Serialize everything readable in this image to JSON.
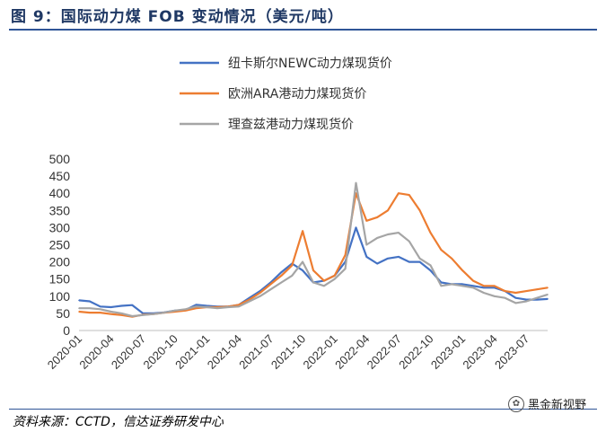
{
  "header": {
    "title": "图 9：国际动力煤 FOB 变动情况（美元/吨）"
  },
  "footer": {
    "source": "资料来源：CCTD，信达证券研发中心",
    "watermark": "黑金新视野"
  },
  "chart_data": {
    "type": "line",
    "title": "图 9：国际动力煤 FOB 变动情况（美元/吨）",
    "xlabel": "",
    "ylabel": "",
    "ylim": [
      0,
      500
    ],
    "yticks": [
      0,
      50,
      100,
      150,
      200,
      250,
      300,
      350,
      400,
      450,
      500
    ],
    "x_range": [
      "2020-01",
      "2023-09"
    ],
    "xticks": [
      "2020-01",
      "2020-04",
      "2020-07",
      "2020-10",
      "2021-01",
      "2021-04",
      "2021-07",
      "2021-10",
      "2022-01",
      "2022-04",
      "2022-07",
      "2022-10",
      "2023-01",
      "2023-04",
      "2023-07"
    ],
    "legend_position": "top",
    "series": [
      {
        "name": "纽卡斯尔NEWC动力煤现货价",
        "color": "#4472c4",
        "points": [
          [
            "2020-01",
            88
          ],
          [
            "2020-02",
            85
          ],
          [
            "2020-03",
            70
          ],
          [
            "2020-04",
            68
          ],
          [
            "2020-05",
            72
          ],
          [
            "2020-06",
            74
          ],
          [
            "2020-07",
            50
          ],
          [
            "2020-08",
            50
          ],
          [
            "2020-09",
            53
          ],
          [
            "2020-10",
            58
          ],
          [
            "2020-11",
            60
          ],
          [
            "2020-12",
            75
          ],
          [
            "2021-01",
            72
          ],
          [
            "2021-02",
            70
          ],
          [
            "2021-03",
            70
          ],
          [
            "2021-04",
            75
          ],
          [
            "2021-05",
            95
          ],
          [
            "2021-06",
            115
          ],
          [
            "2021-07",
            140
          ],
          [
            "2021-08",
            170
          ],
          [
            "2021-09",
            195
          ],
          [
            "2021-10",
            175
          ],
          [
            "2021-11",
            140
          ],
          [
            "2021-12",
            145
          ],
          [
            "2022-01",
            160
          ],
          [
            "2022-02",
            200
          ],
          [
            "2022-03",
            300
          ],
          [
            "2022-04",
            215
          ],
          [
            "2022-05",
            195
          ],
          [
            "2022-06",
            210
          ],
          [
            "2022-07",
            215
          ],
          [
            "2022-08",
            200
          ],
          [
            "2022-09",
            200
          ],
          [
            "2022-10",
            175
          ],
          [
            "2022-11",
            140
          ],
          [
            "2022-12",
            135
          ],
          [
            "2023-01",
            135
          ],
          [
            "2023-02",
            130
          ],
          [
            "2023-03",
            125
          ],
          [
            "2023-04",
            125
          ],
          [
            "2023-05",
            115
          ],
          [
            "2023-06",
            95
          ],
          [
            "2023-07",
            90
          ],
          [
            "2023-08",
            90
          ],
          [
            "2023-09",
            92
          ]
        ]
      },
      {
        "name": "欧洲ARA港动力煤现货价",
        "color": "#ed7d31",
        "points": [
          [
            "2020-01",
            55
          ],
          [
            "2020-02",
            52
          ],
          [
            "2020-03",
            52
          ],
          [
            "2020-04",
            48
          ],
          [
            "2020-05",
            45
          ],
          [
            "2020-06",
            40
          ],
          [
            "2020-07",
            46
          ],
          [
            "2020-08",
            48
          ],
          [
            "2020-09",
            52
          ],
          [
            "2020-10",
            55
          ],
          [
            "2020-11",
            58
          ],
          [
            "2020-12",
            65
          ],
          [
            "2021-01",
            68
          ],
          [
            "2021-02",
            68
          ],
          [
            "2021-03",
            70
          ],
          [
            "2021-04",
            75
          ],
          [
            "2021-05",
            90
          ],
          [
            "2021-06",
            110
          ],
          [
            "2021-07",
            135
          ],
          [
            "2021-08",
            160
          ],
          [
            "2021-09",
            190
          ],
          [
            "2021-10",
            290
          ],
          [
            "2021-11",
            175
          ],
          [
            "2021-12",
            145
          ],
          [
            "2022-01",
            160
          ],
          [
            "2022-02",
            220
          ],
          [
            "2022-03",
            400
          ],
          [
            "2022-04",
            320
          ],
          [
            "2022-05",
            330
          ],
          [
            "2022-06",
            350
          ],
          [
            "2022-07",
            400
          ],
          [
            "2022-08",
            395
          ],
          [
            "2022-09",
            350
          ],
          [
            "2022-10",
            285
          ],
          [
            "2022-11",
            235
          ],
          [
            "2022-12",
            210
          ],
          [
            "2023-01",
            175
          ],
          [
            "2023-02",
            145
          ],
          [
            "2023-03",
            130
          ],
          [
            "2023-04",
            130
          ],
          [
            "2023-05",
            115
          ],
          [
            "2023-06",
            110
          ],
          [
            "2023-07",
            115
          ],
          [
            "2023-08",
            120
          ],
          [
            "2023-09",
            125
          ]
        ]
      },
      {
        "name": "理查兹港动力煤现货价",
        "color": "#a5a5a5",
        "points": [
          [
            "2020-01",
            65
          ],
          [
            "2020-02",
            65
          ],
          [
            "2020-03",
            62
          ],
          [
            "2020-04",
            55
          ],
          [
            "2020-05",
            50
          ],
          [
            "2020-06",
            42
          ],
          [
            "2020-07",
            45
          ],
          [
            "2020-08",
            48
          ],
          [
            "2020-09",
            52
          ],
          [
            "2020-10",
            58
          ],
          [
            "2020-11",
            62
          ],
          [
            "2020-12",
            70
          ],
          [
            "2021-01",
            68
          ],
          [
            "2021-02",
            65
          ],
          [
            "2021-03",
            68
          ],
          [
            "2021-04",
            70
          ],
          [
            "2021-05",
            85
          ],
          [
            "2021-06",
            100
          ],
          [
            "2021-07",
            120
          ],
          [
            "2021-08",
            140
          ],
          [
            "2021-09",
            160
          ],
          [
            "2021-10",
            200
          ],
          [
            "2021-11",
            140
          ],
          [
            "2021-12",
            130
          ],
          [
            "2022-01",
            150
          ],
          [
            "2022-02",
            180
          ],
          [
            "2022-03",
            430
          ],
          [
            "2022-04",
            250
          ],
          [
            "2022-05",
            270
          ],
          [
            "2022-06",
            280
          ],
          [
            "2022-07",
            285
          ],
          [
            "2022-08",
            260
          ],
          [
            "2022-09",
            210
          ],
          [
            "2022-10",
            190
          ],
          [
            "2022-11",
            130
          ],
          [
            "2022-12",
            135
          ],
          [
            "2023-01",
            130
          ],
          [
            "2023-02",
            125
          ],
          [
            "2023-03",
            110
          ],
          [
            "2023-04",
            100
          ],
          [
            "2023-05",
            95
          ],
          [
            "2023-06",
            80
          ],
          [
            "2023-07",
            85
          ],
          [
            "2023-08",
            95
          ],
          [
            "2023-09",
            105
          ]
        ]
      }
    ]
  }
}
